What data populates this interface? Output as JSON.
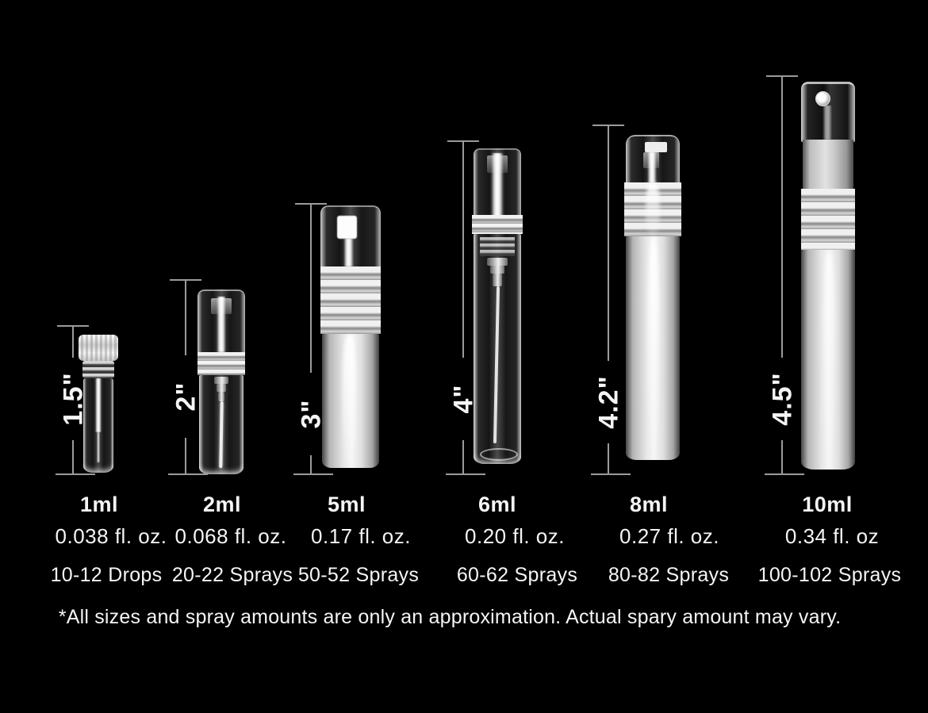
{
  "colors": {
    "background": "#000000",
    "text": "#f5f5f5",
    "dimension_line": "#9b9b9b"
  },
  "footnote": "*All sizes and spray amounts are only an approximation. Actual spary amount may vary.",
  "bottles": [
    {
      "height_label": "1.5\"",
      "volume": "1ml",
      "fl_oz": "0.038 fl. oz.",
      "amount": "10-12 Drops"
    },
    {
      "height_label": "2\"",
      "volume": "2ml",
      "fl_oz": "0.068 fl. oz.",
      "amount": "20-22 Sprays"
    },
    {
      "height_label": "3\"",
      "volume": "5ml",
      "fl_oz": "0.17 fl. oz.",
      "amount": "50-52 Sprays"
    },
    {
      "height_label": "4\"",
      "volume": "6ml",
      "fl_oz": "0.20 fl. oz.",
      "amount": "60-62 Sprays"
    },
    {
      "height_label": "4.2\"",
      "volume": "8ml",
      "fl_oz": "0.27 fl. oz.",
      "amount": "80-82 Sprays"
    },
    {
      "height_label": "4.5\"",
      "volume": "10ml",
      "fl_oz": "0.34 fl. oz",
      "amount": "100-102 Sprays"
    }
  ]
}
